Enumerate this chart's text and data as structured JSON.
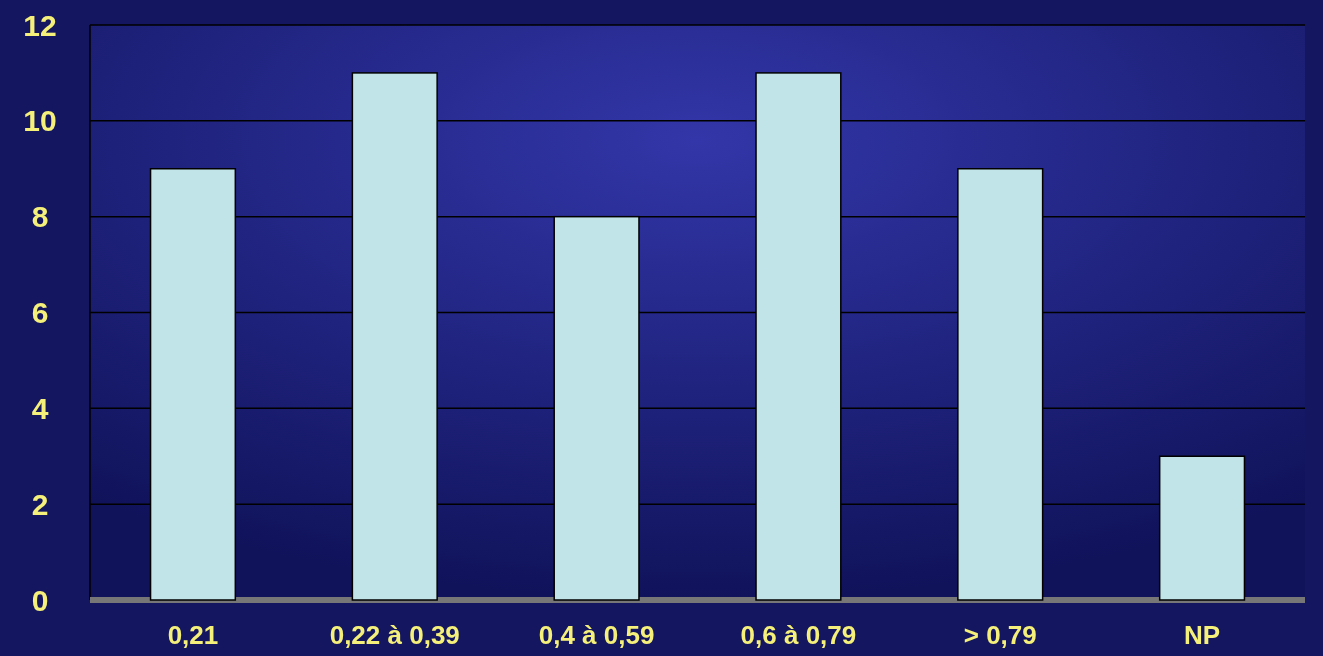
{
  "chart_data": {
    "type": "bar",
    "categories": [
      "0,21",
      "0,22 à 0,39",
      "0,4 à 0,59",
      "0,6 à 0,79",
      "> 0,79",
      "NP"
    ],
    "values": [
      9,
      11,
      8,
      11,
      9,
      3
    ],
    "color": "#c0e4e8",
    "ylim": [
      0,
      12
    ],
    "yticks": [
      0,
      2,
      4,
      6,
      8,
      10,
      12
    ],
    "grid": "y"
  }
}
